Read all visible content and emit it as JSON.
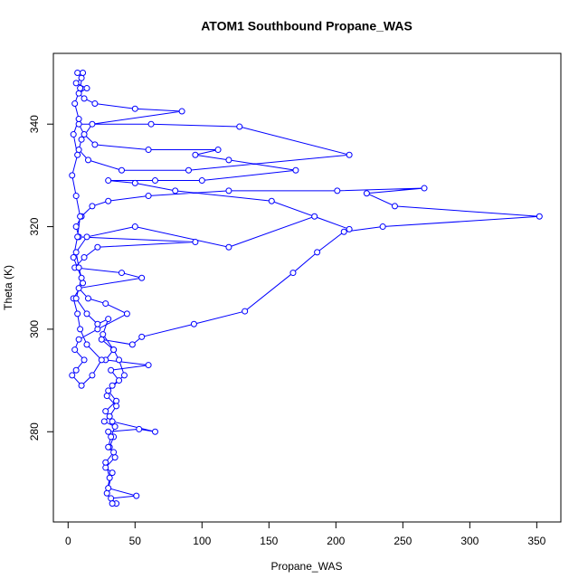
{
  "chart_data": {
    "type": "line",
    "title": "ATOM1 Southbound Propane_WAS",
    "x_label": "Propane_WAS",
    "y_label": "Theta (K)",
    "color": "#0000ff",
    "markers": "open-circle",
    "x": [
      36,
      32,
      51,
      30,
      33,
      28,
      35,
      31,
      34,
      30,
      53,
      65,
      33,
      28,
      36,
      30,
      38,
      32,
      60,
      28,
      34,
      25,
      48,
      55,
      94,
      132,
      168,
      186,
      206,
      235,
      352,
      244,
      223,
      266,
      201,
      120,
      60,
      30,
      18,
      10,
      6,
      8,
      95,
      22,
      12,
      5,
      40,
      55,
      8,
      15,
      28,
      44,
      22,
      8,
      5,
      12,
      6,
      3,
      10,
      18,
      25,
      14,
      9,
      7,
      4,
      11,
      8,
      6,
      14,
      50,
      120,
      184,
      210,
      152,
      80,
      50,
      30,
      65,
      100,
      170,
      120,
      95,
      112,
      60,
      20,
      12,
      8,
      62,
      128,
      210,
      90,
      40,
      15,
      8,
      10,
      18,
      85,
      50,
      20,
      12,
      8,
      14,
      6,
      10,
      7,
      11,
      9,
      5,
      8,
      4,
      7,
      3,
      6,
      9,
      7,
      4,
      10,
      6,
      14,
      22,
      30,
      26,
      34,
      38,
      42,
      33,
      29,
      36,
      31,
      27,
      35,
      32,
      30,
      34,
      28,
      31,
      29,
      33
    ],
    "values": [
      266,
      267,
      267.5,
      269,
      272,
      273,
      275,
      277,
      279,
      280,
      280.5,
      280,
      282,
      284,
      286,
      288,
      290,
      292,
      293,
      294,
      296,
      298,
      297,
      298.5,
      301,
      303.5,
      311,
      315,
      319,
      320,
      322,
      324,
      326.5,
      327.5,
      327,
      327,
      326,
      325,
      324,
      322,
      320,
      318,
      317,
      316,
      314,
      312,
      311,
      310,
      308,
      306,
      305,
      303,
      300,
      298,
      296,
      294,
      292,
      291,
      289,
      291,
      294,
      297,
      300,
      303,
      306,
      309,
      312,
      315,
      318,
      320,
      316,
      322,
      319.5,
      325,
      327,
      328.5,
      329,
      329,
      329,
      331,
      333,
      334,
      335,
      335,
      336,
      338,
      340,
      340,
      339.5,
      334,
      331,
      331,
      333,
      335,
      337,
      340,
      342.5,
      343,
      344,
      345,
      346,
      347,
      348,
      349,
      350,
      350,
      347,
      344,
      341,
      338,
      334,
      330,
      326,
      322,
      318,
      314,
      310,
      306,
      303,
      301,
      302,
      299,
      296,
      294,
      291,
      289,
      287,
      285,
      283,
      282,
      281,
      279,
      277,
      276,
      274,
      271,
      268,
      266
    ],
    "xlim": [
      -11,
      368
    ],
    "ylim": [
      262.4,
      353.8
    ],
    "xticks": [
      0,
      50,
      100,
      150,
      200,
      250,
      300,
      350
    ],
    "yticks": [
      280,
      300,
      320,
      340
    ]
  }
}
